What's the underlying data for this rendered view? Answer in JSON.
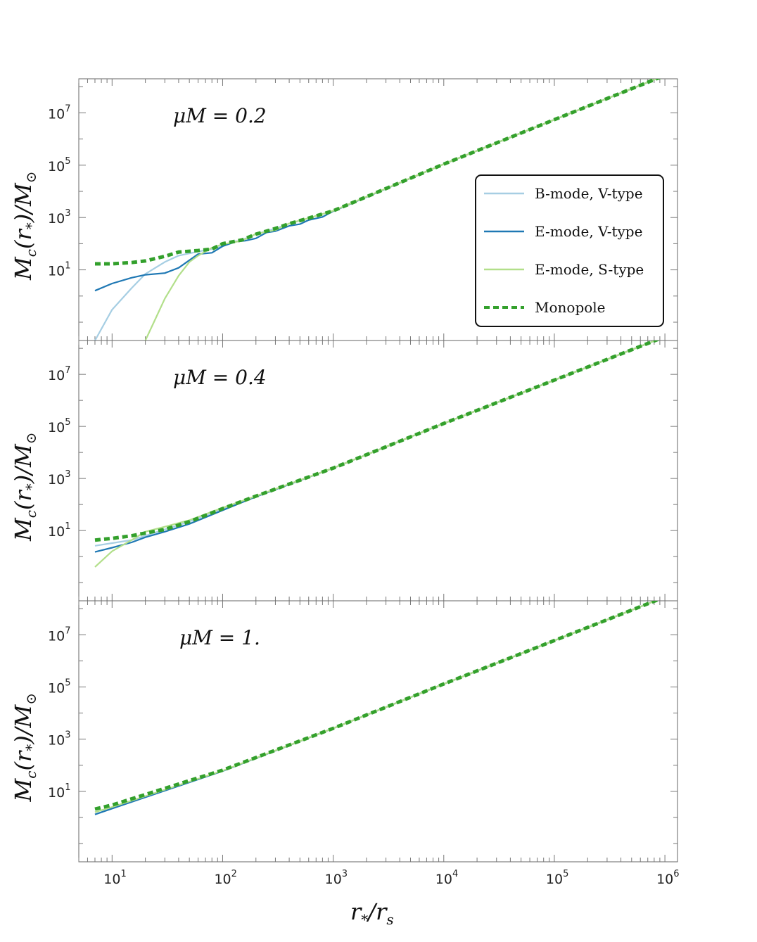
{
  "chart_data": [
    {
      "type": "line",
      "annotation": "μM = 0.2",
      "ylabel": "M_c(r_*)/M_⊙",
      "xlabel": "r_*/r_s",
      "x_scale": "log",
      "y_scale": "log",
      "xlim": [
        5,
        1300000
      ],
      "ylim": [
        0.02,
        200000000
      ],
      "x_ticks": [
        10,
        100,
        1000,
        10000,
        100000,
        1000000
      ],
      "y_ticks": [
        10,
        1000,
        100000,
        10000000
      ],
      "legend_position": "right",
      "series": [
        {
          "name": "B-mode, V-type",
          "color": "#a6cee3",
          "style": "solid",
          "x": [
            7,
            10,
            15,
            20,
            30,
            40,
            60,
            80,
            100,
            150,
            200,
            300,
            400,
            600,
            1000,
            10000,
            100000,
            1000000
          ],
          "y": [
            0.02,
            0.3,
            2.0,
            7,
            20,
            35,
            50,
            62,
            80,
            140,
            230,
            380,
            580,
            950,
            1800,
            110000,
            5500000,
            270000000
          ]
        },
        {
          "name": "E-mode, V-type",
          "color": "#1f78b4",
          "style": "solid",
          "x": [
            7,
            10,
            15,
            20,
            30,
            40,
            60,
            80,
            100,
            130,
            160,
            200,
            250,
            300,
            400,
            500,
            600,
            800,
            1000,
            10000,
            100000,
            1000000
          ],
          "y": [
            1.6,
            3.0,
            5.0,
            6.5,
            7.5,
            12,
            40,
            45,
            80,
            120,
            130,
            160,
            270,
            300,
            480,
            560,
            800,
            1050,
            1750,
            110000,
            5500000,
            270000000
          ]
        },
        {
          "name": "E-mode, S-type",
          "color": "#b2df8a",
          "style": "solid",
          "x": [
            20,
            25,
            30,
            40,
            50,
            60,
            80,
            100,
            150,
            200,
            300,
            400,
            600,
            1000,
            10000,
            100000,
            1000000
          ],
          "y": [
            0.02,
            0.15,
            0.8,
            6,
            20,
            35,
            70,
            95,
            130,
            240,
            330,
            600,
            950,
            1800,
            110000,
            5500000,
            270000000
          ]
        },
        {
          "name": "Monopole",
          "color": "#33a02c",
          "style": "dashed",
          "x": [
            7,
            10,
            15,
            20,
            30,
            40,
            60,
            80,
            100,
            150,
            200,
            300,
            400,
            600,
            1000,
            10000,
            100000,
            1000000
          ],
          "y": [
            17,
            17,
            19,
            22,
            33,
            48,
            55,
            62,
            100,
            140,
            230,
            380,
            580,
            950,
            1800,
            110000,
            5500000,
            270000000
          ]
        }
      ]
    },
    {
      "type": "line",
      "annotation": "μM = 0.4",
      "ylabel": "M_c(r_*)/M_⊙",
      "xlabel": "r_*/r_s",
      "x_scale": "log",
      "y_scale": "log",
      "xlim": [
        5,
        1300000
      ],
      "ylim": [
        0.02,
        200000000
      ],
      "x_ticks": [
        10,
        100,
        1000,
        10000,
        100000,
        1000000
      ],
      "y_ticks": [
        10,
        1000,
        100000,
        10000000
      ],
      "series": [
        {
          "name": "B-mode, V-type",
          "color": "#a6cee3",
          "style": "solid",
          "x": [
            7,
            10,
            15,
            20,
            30,
            50,
            100,
            200,
            1000,
            10000,
            100000,
            1000000
          ],
          "y": [
            2.6,
            3.3,
            4.3,
            6.3,
            11,
            22,
            70,
            210,
            2500,
            130000,
            6000000,
            280000000
          ]
        },
        {
          "name": "E-mode, V-type",
          "color": "#1f78b4",
          "style": "solid",
          "x": [
            7,
            10,
            15,
            20,
            30,
            50,
            100,
            200,
            1000,
            10000,
            100000,
            1000000
          ],
          "y": [
            1.5,
            2.2,
            3.5,
            5.5,
            9,
            18,
            60,
            200,
            2500,
            130000,
            6000000,
            280000000
          ]
        },
        {
          "name": "E-mode, S-type",
          "color": "#b2df8a",
          "style": "solid",
          "x": [
            7,
            10,
            15,
            20,
            30,
            50,
            100,
            200,
            1000,
            10000,
            100000,
            1000000
          ],
          "y": [
            0.4,
            1.6,
            4.3,
            9,
            14,
            25,
            75,
            210,
            2500,
            130000,
            6000000,
            280000000
          ]
        },
        {
          "name": "Monopole",
          "color": "#33a02c",
          "style": "dashed",
          "x": [
            7,
            10,
            15,
            20,
            30,
            50,
            100,
            200,
            1000,
            10000,
            100000,
            1000000
          ],
          "y": [
            4.3,
            5.0,
            6.3,
            8,
            11,
            22,
            70,
            210,
            2500,
            130000,
            6000000,
            280000000
          ]
        }
      ]
    },
    {
      "type": "line",
      "annotation": "μM = 1.",
      "ylabel": "M_c(r_*)/M_⊙",
      "xlabel": "r_*/r_s",
      "x_scale": "log",
      "y_scale": "log",
      "xlim": [
        5,
        1300000
      ],
      "ylim": [
        0.02,
        200000000
      ],
      "x_ticks": [
        10,
        100,
        1000,
        10000,
        100000,
        1000000
      ],
      "y_ticks": [
        10,
        1000,
        100000,
        10000000
      ],
      "series": [
        {
          "name": "B-mode, V-type",
          "color": "#a6cee3",
          "style": "solid",
          "x": [
            7,
            10,
            100,
            1000,
            10000,
            100000,
            1000000
          ],
          "y": [
            1.3,
            2.2,
            60,
            2600,
            130000,
            6000000,
            280000000
          ]
        },
        {
          "name": "E-mode, V-type",
          "color": "#1f78b4",
          "style": "solid",
          "x": [
            7,
            10,
            100,
            1000,
            10000,
            100000,
            1000000
          ],
          "y": [
            1.3,
            2.2,
            60,
            2600,
            130000,
            6000000,
            280000000
          ]
        },
        {
          "name": "E-mode, S-type",
          "color": "#b2df8a",
          "style": "solid",
          "x": [
            7,
            10,
            100,
            1000,
            10000,
            100000,
            1000000
          ],
          "y": [
            1.6,
            2.5,
            62,
            2600,
            130000,
            6000000,
            280000000
          ]
        },
        {
          "name": "Monopole",
          "color": "#33a02c",
          "style": "dashed",
          "x": [
            7,
            10,
            100,
            1000,
            10000,
            100000,
            1000000
          ],
          "y": [
            2.1,
            3.0,
            65,
            2600,
            130000,
            6000000,
            280000000
          ]
        }
      ]
    }
  ],
  "labels": {
    "ylabel_main": "M",
    "ylabel_sub1": "c",
    "ylabel_mid": "(r",
    "ylabel_sub2": "*",
    "ylabel_end": ")/M",
    "ylabel_sun": "⊙",
    "xlabel_main": "r",
    "xlabel_sub1": "*",
    "xlabel_mid": "/r",
    "xlabel_sub2": "s",
    "tick_base": "10",
    "x_tick_exps": [
      "1",
      "2",
      "3",
      "4",
      "5",
      "6"
    ],
    "y_tick_exps": [
      "1",
      "3",
      "5",
      "7"
    ]
  }
}
